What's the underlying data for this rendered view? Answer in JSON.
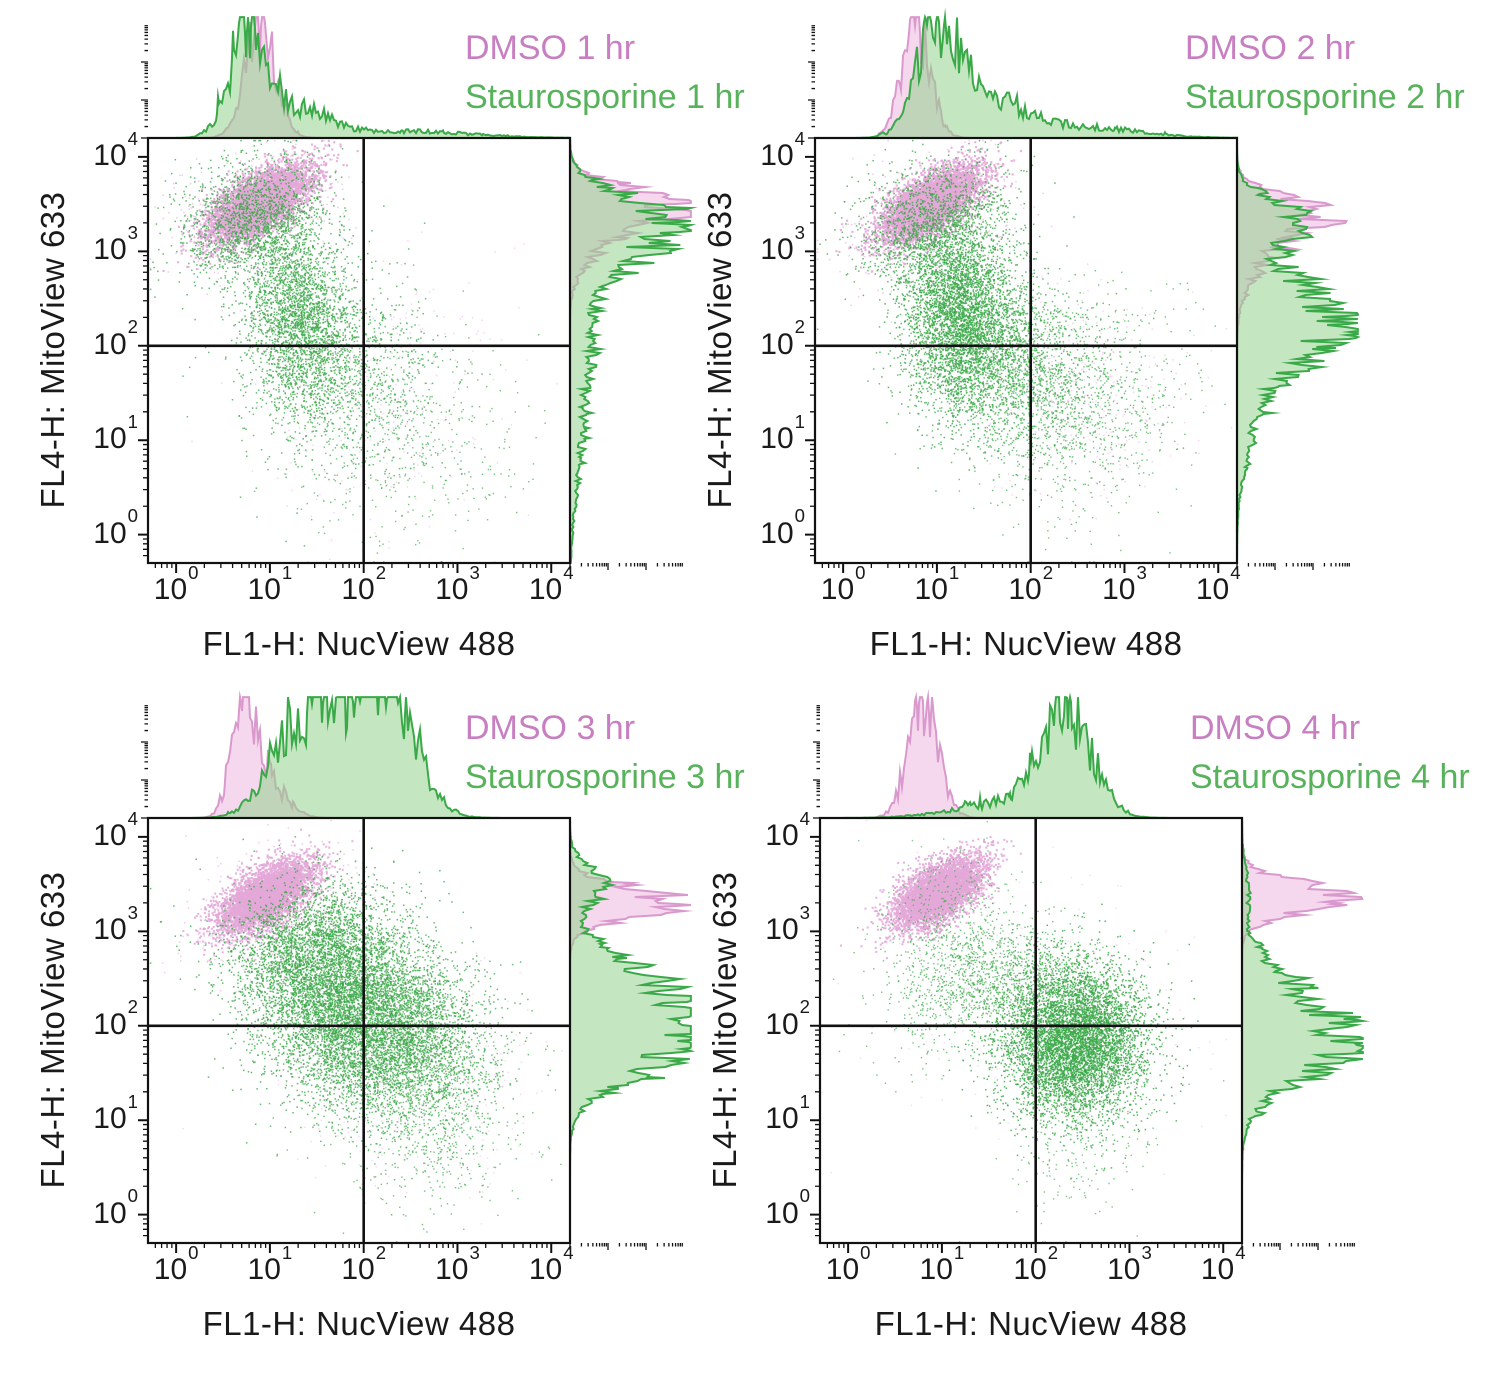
{
  "figure": {
    "description": "Flow cytometry apoptosis time course: NucView 488 caspase-3 substrate vs MitoView 633 mitochondrial dye, DMSO control vs staurosporine treated cells at 1-4 hr, with quadrant gates and marginal histograms"
  },
  "colors": {
    "dmso_text": "#c77fc1",
    "stauro_text": "#57b25b",
    "dmso_dot": "#e3a8d8",
    "stauro_dot": "#3ca94a",
    "dmso_hist_fill": "#f3cdea",
    "dmso_hist_stroke": "#d999cd",
    "stauro_hist_fill": "#93d18c",
    "stauro_hist_stroke": "#3aa948",
    "axis": "#111111",
    "background": "#ffffff"
  },
  "chart_data": {
    "type": "scatter",
    "subtype": "flow-cytometry-dot-plot-with-marginal-histograms",
    "axes": {
      "xlabel": "FL1-H: NucView 488",
      "ylabel": "FL4-H: MitoView 633",
      "x_tick_labels": [
        "10⁰",
        "10¹",
        "10²",
        "10³",
        "10⁴"
      ],
      "y_tick_labels": [
        "10⁰",
        "10¹",
        "10²",
        "10³",
        "10⁴"
      ],
      "tick_exponents": [
        0,
        1,
        2,
        3,
        4
      ],
      "x_range": [
        1,
        10000
      ],
      "y_range": [
        1,
        10000
      ],
      "scale": "log10",
      "quadrant_gate": {
        "x": 100,
        "y": 100
      }
    },
    "panels": [
      {
        "id": "1hr",
        "legend": {
          "dmso": "DMSO 1 hr",
          "stauro": "Staurosporine 1 hr"
        },
        "scatter_clusters": [
          {
            "series": "dmso",
            "n": 5200,
            "cx": 0.88,
            "cy": 3.52,
            "sx": 0.3,
            "sy": 0.13,
            "rot": 33,
            "size": 2.1,
            "alpha": 0.9
          },
          {
            "series": "dmso",
            "n": 500,
            "cx": 0.85,
            "cy": 3.4,
            "sx": 0.45,
            "sy": 0.28,
            "rot": 30,
            "size": 1.5,
            "alpha": 0.6
          },
          {
            "series": "dmso",
            "n": 260,
            "cx": 2.1,
            "cy": 1.5,
            "sx": 0.65,
            "sy": 0.75,
            "rot": -20,
            "size": 1.4,
            "alpha": 0.5
          },
          {
            "series": "stauro",
            "n": 1700,
            "cx": 0.8,
            "cy": 3.35,
            "sx": 0.4,
            "sy": 0.3,
            "rot": 28,
            "size": 1.5,
            "alpha": 0.8
          },
          {
            "series": "stauro",
            "n": 2600,
            "cx": 1.3,
            "cy": 2.3,
            "sx": 0.28,
            "sy": 0.5,
            "rot": 5,
            "size": 1.5,
            "alpha": 0.8
          },
          {
            "series": "stauro",
            "n": 1100,
            "cx": 1.75,
            "cy": 1.7,
            "sx": 0.5,
            "sy": 0.55,
            "rot": -15,
            "size": 1.5,
            "alpha": 0.75
          },
          {
            "series": "stauro",
            "n": 450,
            "cx": 2.5,
            "cy": 1.0,
            "sx": 0.55,
            "sy": 0.6,
            "rot": -25,
            "size": 1.4,
            "alpha": 0.7
          }
        ],
        "top_histogram": {
          "dmso_peaks": [
            {
              "c": 0.9,
              "s": 0.16,
              "h": 1.0
            }
          ],
          "stauro_peaks": [
            {
              "c": 0.78,
              "s": 0.2,
              "h": 0.97
            },
            {
              "c": 1.35,
              "s": 0.3,
              "h": 0.22
            },
            {
              "c": 2.4,
              "s": 0.7,
              "h": 0.06
            }
          ]
        },
        "right_histogram": {
          "dmso_peaks": [
            {
              "c": 3.48,
              "s": 0.18,
              "h": 0.9
            },
            {
              "c": 3.1,
              "s": 0.25,
              "h": 0.25
            }
          ],
          "stauro_peaks": [
            {
              "c": 3.38,
              "s": 0.22,
              "h": 0.8
            },
            {
              "c": 2.95,
              "s": 0.22,
              "h": 0.5
            },
            {
              "c": 2.3,
              "s": 0.4,
              "h": 0.18
            },
            {
              "c": 1.3,
              "s": 0.7,
              "h": 0.12
            }
          ]
        }
      },
      {
        "id": "2hr",
        "legend": {
          "dmso": "DMSO 2 hr",
          "stauro": "Staurosporine 2 hr"
        },
        "scatter_clusters": [
          {
            "series": "dmso",
            "n": 5200,
            "cx": 0.92,
            "cy": 3.52,
            "sx": 0.3,
            "sy": 0.13,
            "rot": 33,
            "size": 2.1,
            "alpha": 0.9
          },
          {
            "series": "dmso",
            "n": 420,
            "cx": 0.9,
            "cy": 3.35,
            "sx": 0.45,
            "sy": 0.3,
            "rot": 30,
            "size": 1.5,
            "alpha": 0.6
          },
          {
            "series": "dmso",
            "n": 300,
            "cx": 2.5,
            "cy": 1.55,
            "sx": 0.6,
            "sy": 0.55,
            "rot": -25,
            "size": 1.4,
            "alpha": 0.5
          },
          {
            "series": "stauro",
            "n": 1500,
            "cx": 0.95,
            "cy": 3.3,
            "sx": 0.42,
            "sy": 0.3,
            "rot": 25,
            "size": 1.5,
            "alpha": 0.8
          },
          {
            "series": "stauro",
            "n": 3600,
            "cx": 1.25,
            "cy": 2.35,
            "sx": 0.3,
            "sy": 0.5,
            "rot": 5,
            "size": 1.5,
            "alpha": 0.85
          },
          {
            "series": "stauro",
            "n": 2000,
            "cx": 1.7,
            "cy": 1.85,
            "sx": 0.5,
            "sy": 0.45,
            "rot": -20,
            "size": 1.5,
            "alpha": 0.75
          },
          {
            "series": "stauro",
            "n": 1000,
            "cx": 2.5,
            "cy": 1.35,
            "sx": 0.55,
            "sy": 0.6,
            "rot": -30,
            "size": 1.4,
            "alpha": 0.7
          }
        ],
        "top_histogram": {
          "dmso_peaks": [
            {
              "c": 0.78,
              "s": 0.15,
              "h": 1.0
            }
          ],
          "stauro_peaks": [
            {
              "c": 1.0,
              "s": 0.22,
              "h": 0.92
            },
            {
              "c": 1.55,
              "s": 0.35,
              "h": 0.35
            },
            {
              "c": 2.5,
              "s": 0.6,
              "h": 0.1
            }
          ]
        },
        "right_histogram": {
          "dmso_peaks": [
            {
              "c": 3.4,
              "s": 0.17,
              "h": 0.7
            },
            {
              "c": 3.0,
              "s": 0.3,
              "h": 0.25
            }
          ],
          "stauro_peaks": [
            {
              "c": 3.32,
              "s": 0.2,
              "h": 0.55
            },
            {
              "c": 2.25,
              "s": 0.45,
              "h": 0.92
            },
            {
              "c": 1.1,
              "s": 0.4,
              "h": 0.12
            }
          ]
        }
      },
      {
        "id": "3hr",
        "legend": {
          "dmso": "DMSO 3 hr",
          "stauro": "Staurosporine 3 hr"
        },
        "scatter_clusters": [
          {
            "series": "dmso",
            "n": 4800,
            "cx": 0.95,
            "cy": 3.38,
            "sx": 0.28,
            "sy": 0.13,
            "rot": 33,
            "size": 2.0,
            "alpha": 0.9
          },
          {
            "series": "dmso",
            "n": 450,
            "cx": 1.0,
            "cy": 3.25,
            "sx": 0.45,
            "sy": 0.3,
            "rot": 30,
            "size": 1.5,
            "alpha": 0.6
          },
          {
            "series": "dmso",
            "n": 350,
            "cx": 2.4,
            "cy": 1.5,
            "sx": 0.7,
            "sy": 0.6,
            "rot": -20,
            "size": 1.4,
            "alpha": 0.45
          },
          {
            "series": "stauro",
            "n": 2200,
            "cx": 1.4,
            "cy": 2.85,
            "sx": 0.45,
            "sy": 0.35,
            "rot": 15,
            "size": 1.5,
            "alpha": 0.8
          },
          {
            "series": "stauro",
            "n": 5200,
            "cx": 1.85,
            "cy": 2.2,
            "sx": 0.52,
            "sy": 0.45,
            "rot": -12,
            "size": 1.5,
            "alpha": 0.8
          },
          {
            "series": "stauro",
            "n": 2800,
            "cx": 2.35,
            "cy": 1.8,
            "sx": 0.5,
            "sy": 0.45,
            "rot": -18,
            "size": 1.5,
            "alpha": 0.75
          },
          {
            "series": "stauro",
            "n": 700,
            "cx": 2.7,
            "cy": 1.05,
            "sx": 0.45,
            "sy": 0.5,
            "rot": -25,
            "size": 1.4,
            "alpha": 0.7
          }
        ],
        "top_histogram": {
          "dmso_peaks": [
            {
              "c": 0.72,
              "s": 0.13,
              "h": 1.0
            },
            {
              "c": 1.0,
              "s": 0.18,
              "h": 0.3
            }
          ],
          "stauro_peaks": [
            {
              "c": 1.25,
              "s": 0.28,
              "h": 0.6
            },
            {
              "c": 1.85,
              "s": 0.4,
              "h": 0.85
            },
            {
              "c": 2.3,
              "s": 0.28,
              "h": 0.8
            }
          ]
        },
        "right_histogram": {
          "dmso_peaks": [
            {
              "c": 3.3,
              "s": 0.16,
              "h": 0.9
            }
          ],
          "stauro_peaks": [
            {
              "c": 3.5,
              "s": 0.18,
              "h": 0.3
            },
            {
              "c": 2.2,
              "s": 0.42,
              "h": 0.95
            },
            {
              "c": 1.7,
              "s": 0.3,
              "h": 0.5
            }
          ]
        }
      },
      {
        "id": "4hr",
        "legend": {
          "dmso": "DMSO 4 hr",
          "stauro": "Staurosporine 4 hr"
        },
        "scatter_clusters": [
          {
            "series": "dmso",
            "n": 4800,
            "cx": 0.95,
            "cy": 3.42,
            "sx": 0.27,
            "sy": 0.13,
            "rot": 33,
            "size": 2.0,
            "alpha": 0.9
          },
          {
            "series": "dmso",
            "n": 260,
            "cx": 2.0,
            "cy": 2.3,
            "sx": 0.8,
            "sy": 0.7,
            "rot": 0,
            "size": 1.4,
            "alpha": 0.4
          },
          {
            "series": "stauro",
            "n": 1000,
            "cx": 1.25,
            "cy": 2.5,
            "sx": 0.45,
            "sy": 0.4,
            "rot": 10,
            "size": 1.4,
            "alpha": 0.7
          },
          {
            "series": "stauro",
            "n": 600,
            "cx": 1.9,
            "cy": 2.55,
            "sx": 0.45,
            "sy": 0.3,
            "rot": 0,
            "size": 1.4,
            "alpha": 0.7
          },
          {
            "series": "stauro",
            "n": 6200,
            "cx": 2.4,
            "cy": 1.85,
            "sx": 0.38,
            "sy": 0.4,
            "rot": -8,
            "size": 1.5,
            "alpha": 0.85
          },
          {
            "series": "stauro",
            "n": 300,
            "cx": 2.5,
            "cy": 0.95,
            "sx": 0.4,
            "sy": 0.5,
            "rot": -20,
            "size": 1.4,
            "alpha": 0.65
          },
          {
            "series": "stauro",
            "n": 250,
            "cx": 1.0,
            "cy": 3.3,
            "sx": 0.35,
            "sy": 0.25,
            "rot": 25,
            "size": 1.4,
            "alpha": 0.6
          }
        ],
        "top_histogram": {
          "dmso_peaks": [
            {
              "c": 0.8,
              "s": 0.16,
              "h": 1.0
            }
          ],
          "stauro_peaks": [
            {
              "c": 2.32,
              "s": 0.27,
              "h": 0.95
            },
            {
              "c": 1.6,
              "s": 0.5,
              "h": 0.12
            }
          ]
        },
        "right_histogram": {
          "dmso_peaks": [
            {
              "c": 3.36,
              "s": 0.16,
              "h": 0.85
            }
          ],
          "stauro_peaks": [
            {
              "c": 1.85,
              "s": 0.38,
              "h": 0.95
            },
            {
              "c": 2.55,
              "s": 0.25,
              "h": 0.2
            },
            {
              "c": 3.4,
              "s": 0.25,
              "h": 0.06
            }
          ]
        }
      }
    ]
  }
}
